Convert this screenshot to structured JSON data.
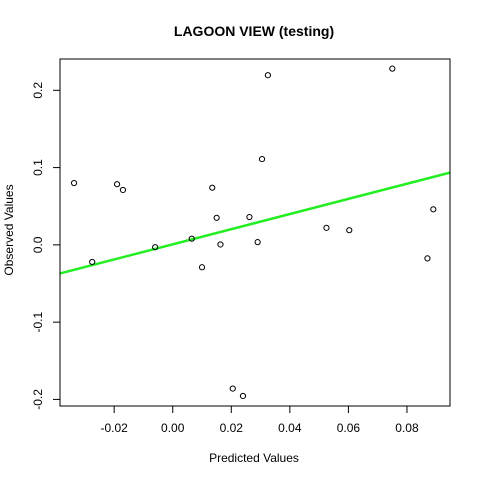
{
  "chart_data": {
    "type": "scatter",
    "title": "LAGOON VIEW (testing)",
    "xlabel": "Predicted Values",
    "ylabel": "Observed Values",
    "xlim": [
      -0.0385,
      0.0947
    ],
    "ylim": [
      -0.2085,
      0.2405
    ],
    "x_ticks": [
      -0.02,
      0.0,
      0.02,
      0.04,
      0.06,
      0.08
    ],
    "x_tick_labels": [
      "-0.02",
      "0.00",
      "0.02",
      "0.04",
      "0.06",
      "0.08"
    ],
    "y_ticks": [
      -0.2,
      -0.1,
      0.0,
      0.1,
      0.2
    ],
    "y_tick_labels": [
      "-0.2",
      "-0.1",
      "0.0",
      "0.1",
      "0.2"
    ],
    "grid": false,
    "legend": "none",
    "points": [
      {
        "x": -0.0337,
        "y": 0.08
      },
      {
        "x": -0.0275,
        "y": -0.0221
      },
      {
        "x": -0.019,
        "y": 0.0785
      },
      {
        "x": -0.017,
        "y": 0.071
      },
      {
        "x": -0.006,
        "y": -0.003
      },
      {
        "x": 0.0065,
        "y": 0.008
      },
      {
        "x": 0.01,
        "y": -0.029
      },
      {
        "x": 0.0135,
        "y": 0.074
      },
      {
        "x": 0.015,
        "y": 0.035
      },
      {
        "x": 0.0163,
        "y": 0.0005
      },
      {
        "x": 0.0205,
        "y": -0.186
      },
      {
        "x": 0.024,
        "y": -0.1955
      },
      {
        "x": 0.0262,
        "y": 0.036
      },
      {
        "x": 0.029,
        "y": 0.0035
      },
      {
        "x": 0.0305,
        "y": 0.111
      },
      {
        "x": 0.0325,
        "y": 0.2195
      },
      {
        "x": 0.0525,
        "y": 0.022
      },
      {
        "x": 0.0603,
        "y": 0.019
      },
      {
        "x": 0.075,
        "y": 0.228
      },
      {
        "x": 0.087,
        "y": -0.0175
      },
      {
        "x": 0.089,
        "y": 0.046
      }
    ],
    "fit_line": {
      "x": [
        -0.0385,
        0.0947
      ],
      "y": [
        -0.037,
        0.0935
      ]
    },
    "colors": {
      "points": "#000000",
      "fit_line": "#22ee22",
      "axes": "#000000",
      "background": "#ffffff"
    }
  }
}
